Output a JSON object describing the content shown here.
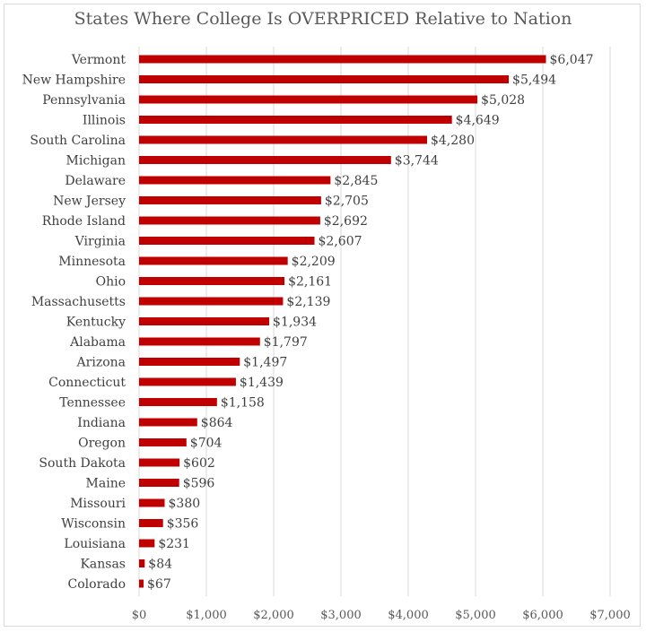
{
  "chart_data": {
    "type": "bar",
    "orientation": "horizontal",
    "title": "States Where College Is OVERPRICED Relative to Nation",
    "categories": [
      "Vermont",
      "New Hampshire",
      "Pennsylvania",
      "Illinois",
      "South Carolina",
      "Michigan",
      "Delaware",
      "New Jersey",
      "Rhode Island",
      "Virginia",
      "Minnesota",
      "Ohio",
      "Massachusetts",
      "Kentucky",
      "Alabama",
      "Arizona",
      "Connecticut",
      "Tennessee",
      "Indiana",
      "Oregon",
      "South Dakota",
      "Maine",
      "Missouri",
      "Wisconsin",
      "Louisiana",
      "Kansas",
      "Colorado"
    ],
    "values": [
      6047,
      5494,
      5028,
      4649,
      4280,
      3744,
      2845,
      2705,
      2692,
      2607,
      2209,
      2161,
      2139,
      1934,
      1797,
      1497,
      1439,
      1158,
      864,
      704,
      602,
      596,
      380,
      356,
      231,
      84,
      67
    ],
    "value_labels": [
      "$6,047",
      "$5,494",
      "$5,028",
      "$4,649",
      "$4,280",
      "$3,744",
      "$2,845",
      "$2,705",
      "$2,692",
      "$2,607",
      "$2,209",
      "$2,161",
      "$2,139",
      "$1,934",
      "$1,797",
      "$1,497",
      "$1,439",
      "$1,158",
      "$864",
      "$704",
      "$602",
      "$596",
      "$380",
      "$356",
      "$231",
      "$84",
      "$67"
    ],
    "xlim": [
      0,
      7000
    ],
    "x_ticks": [
      0,
      1000,
      2000,
      3000,
      4000,
      5000,
      6000,
      7000
    ],
    "x_tick_labels": [
      "$0",
      "$1,000",
      "$2,000",
      "$3,000",
      "$4,000",
      "$5,000",
      "$6,000",
      "$7,000"
    ],
    "grid": true,
    "bar_color": "#c00000"
  }
}
